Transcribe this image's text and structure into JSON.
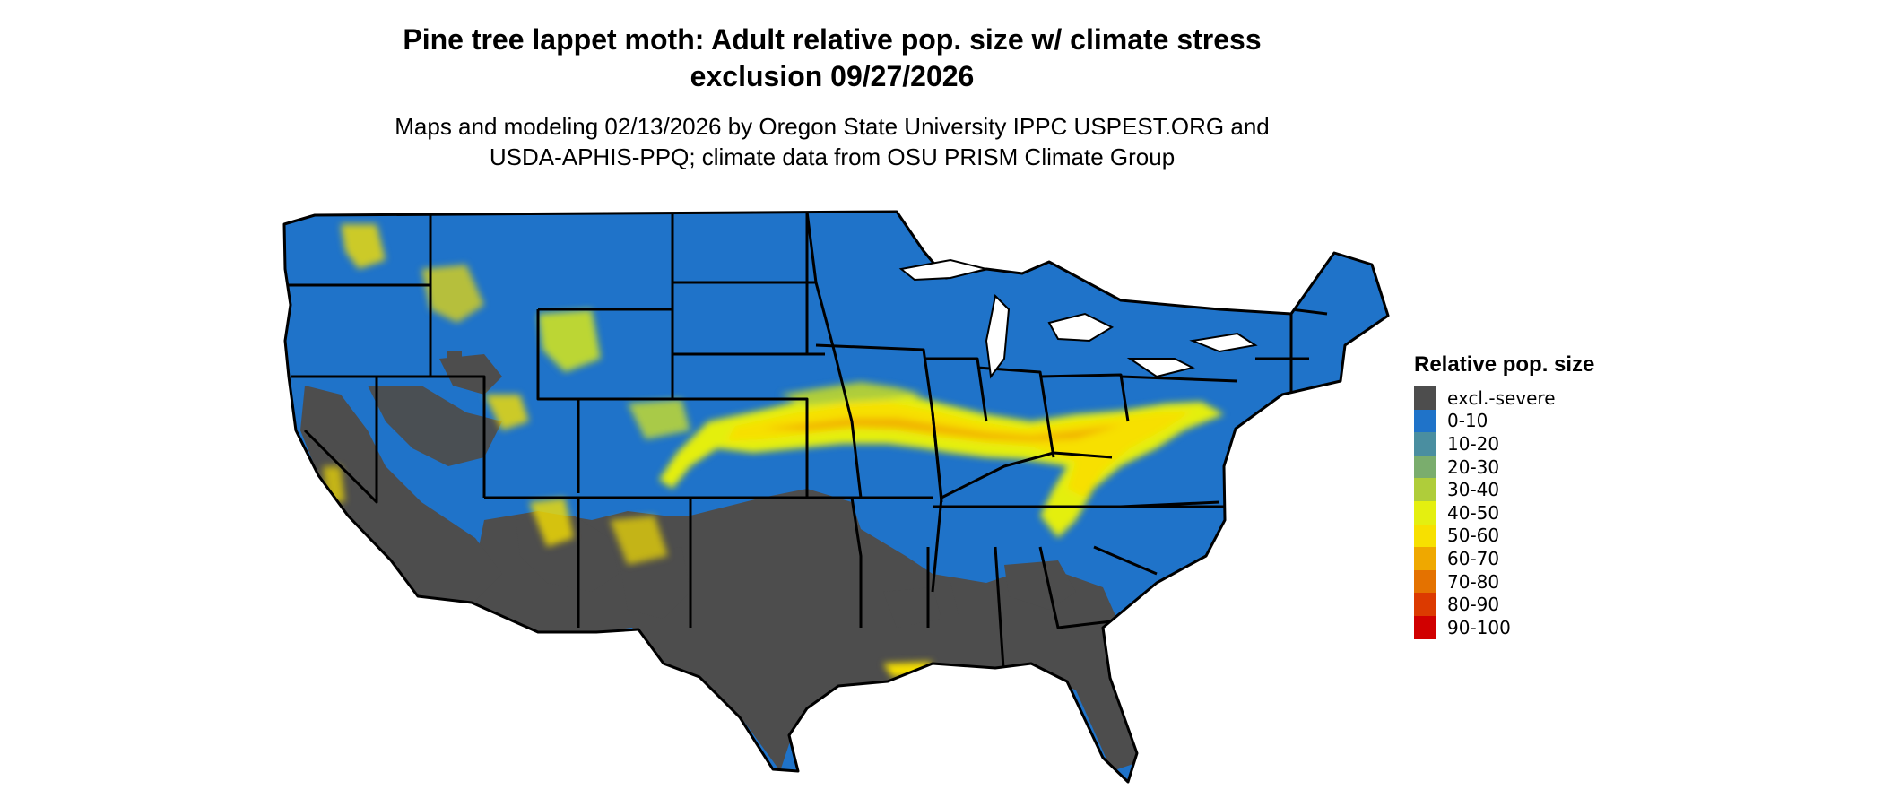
{
  "map": {
    "title_line1": "Pine tree lappet moth: Adult relative pop. size w/ climate stress",
    "title_line2": "exclusion 09/27/2026",
    "subtitle_line1": "Maps and modeling 02/13/2026 by Oregon State University IPPC USPEST.ORG and",
    "subtitle_line2": "USDA-APHIS-PPQ; climate data from OSU PRISM Climate Group"
  },
  "legend": {
    "title": "Relative pop. size",
    "items": [
      {
        "label": "excl.-severe",
        "color": "#4d4d4d"
      },
      {
        "label": "0-10",
        "color": "#1f73c9"
      },
      {
        "label": "10-20",
        "color": "#4a8ea0"
      },
      {
        "label": "20-30",
        "color": "#7aad6d"
      },
      {
        "label": "30-40",
        "color": "#afcd3a"
      },
      {
        "label": "40-50",
        "color": "#e4ef10"
      },
      {
        "label": "50-60",
        "color": "#f7e000"
      },
      {
        "label": "60-70",
        "color": "#efa800"
      },
      {
        "label": "70-80",
        "color": "#e47200"
      },
      {
        "label": "80-90",
        "color": "#dc3a00"
      },
      {
        "label": "90-100",
        "color": "#d10000"
      }
    ]
  }
}
